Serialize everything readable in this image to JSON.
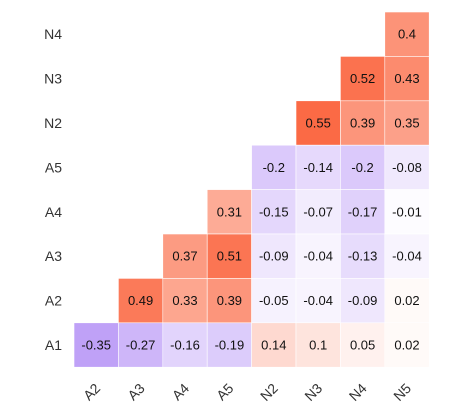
{
  "chart_data": {
    "type": "heatmap",
    "title": "",
    "xlabel": "",
    "ylabel": "",
    "columns": [
      "A2",
      "A3",
      "A4",
      "A5",
      "N2",
      "N3",
      "N4",
      "N5"
    ],
    "rows": [
      "N4",
      "N3",
      "N2",
      "A5",
      "A4",
      "A3",
      "A2",
      "A1"
    ],
    "values": [
      [
        null,
        null,
        null,
        null,
        null,
        null,
        null,
        0.4
      ],
      [
        null,
        null,
        null,
        null,
        null,
        null,
        0.52,
        0.43
      ],
      [
        null,
        null,
        null,
        null,
        null,
        0.55,
        0.39,
        0.35
      ],
      [
        null,
        null,
        null,
        null,
        -0.2,
        -0.14,
        -0.2,
        -0.08
      ],
      [
        null,
        null,
        null,
        0.31,
        -0.15,
        -0.07,
        -0.17,
        -0.01
      ],
      [
        null,
        null,
        0.37,
        0.51,
        -0.09,
        -0.04,
        -0.13,
        -0.04
      ],
      [
        null,
        0.49,
        0.33,
        0.39,
        -0.05,
        -0.04,
        -0.09,
        0.02
      ],
      [
        -0.35,
        -0.27,
        -0.16,
        -0.19,
        0.14,
        0.1,
        0.05,
        0.02
      ]
    ],
    "color_scale": {
      "negative": "#9b6bf3",
      "zero": "#ffffff",
      "positive": "#fb6a45",
      "range": [
        -0.55,
        0.55
      ]
    },
    "legend": "none",
    "grid": false
  }
}
